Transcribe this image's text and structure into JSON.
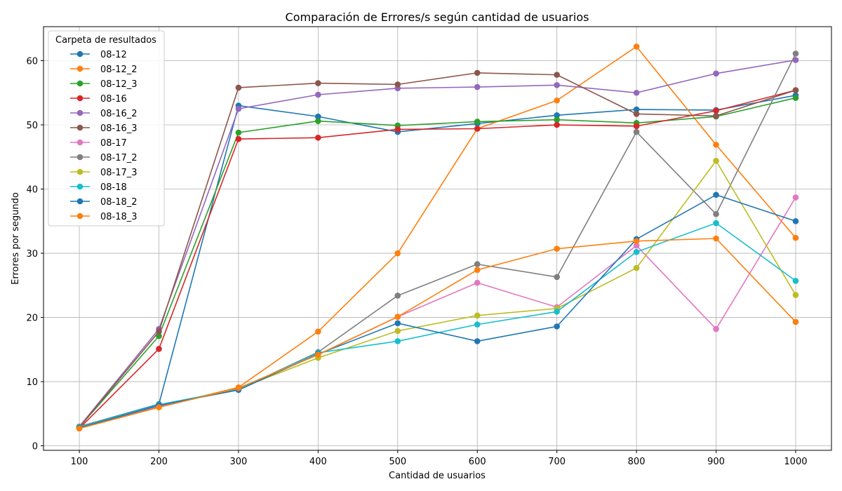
{
  "chart_data": {
    "type": "line",
    "title": "Comparación de Errores/s según cantidad de usuarios",
    "xlabel": "Cantidad de usuarios",
    "ylabel": "Errores por segundo",
    "x": [
      100,
      200,
      300,
      400,
      500,
      600,
      700,
      800,
      900,
      1000
    ],
    "xlim": [
      55,
      1045
    ],
    "ylim": [
      -0.7,
      65.3
    ],
    "xticks": [
      100,
      200,
      300,
      400,
      500,
      600,
      700,
      800,
      900,
      1000
    ],
    "yticks": [
      0,
      10,
      20,
      30,
      40,
      50,
      60
    ],
    "grid": true,
    "legend": {
      "title": "Carpeta de resultados",
      "placement": "upper-left"
    },
    "series": [
      {
        "name": "08-12",
        "color": "#1f77b4",
        "values": [
          3.0,
          6.5,
          53.0,
          51.3,
          48.9,
          50.2,
          51.5,
          52.4,
          52.3,
          54.6
        ]
      },
      {
        "name": "08-12_2",
        "color": "#ff7f0e",
        "values": [
          2.8,
          6.1,
          9.1,
          17.8,
          30.0,
          49.4,
          53.8,
          62.2,
          46.9,
          32.4
        ]
      },
      {
        "name": "08-12_3",
        "color": "#2ca02c",
        "values": [
          2.9,
          17.1,
          48.8,
          50.6,
          49.9,
          50.5,
          50.8,
          50.3,
          51.3,
          54.2
        ]
      },
      {
        "name": "08-16",
        "color": "#d62728",
        "values": [
          2.7,
          15.1,
          47.8,
          48.0,
          49.3,
          49.4,
          50.0,
          49.8,
          52.2,
          55.4
        ]
      },
      {
        "name": "08-16_2",
        "color": "#9467bd",
        "values": [
          3.0,
          18.2,
          52.5,
          54.7,
          55.7,
          55.9,
          56.2,
          55.0,
          58.0,
          60.1
        ]
      },
      {
        "name": "08-16_3",
        "color": "#8c564b",
        "values": [
          2.9,
          17.8,
          55.8,
          56.5,
          56.3,
          58.1,
          57.8,
          51.7,
          51.4,
          55.4
        ]
      },
      {
        "name": "08-17",
        "color": "#e377c2",
        "values": [
          2.8,
          6.2,
          8.9,
          14.2,
          20.1,
          25.4,
          21.6,
          31.2,
          18.2,
          38.7
        ]
      },
      {
        "name": "08-17_2",
        "color": "#7f7f7f",
        "values": [
          3.0,
          6.4,
          8.8,
          14.6,
          23.4,
          28.3,
          26.3,
          48.9,
          36.1,
          61.1
        ]
      },
      {
        "name": "08-17_3",
        "color": "#bcbd22",
        "values": [
          2.9,
          6.3,
          8.9,
          13.7,
          17.9,
          20.3,
          21.4,
          27.7,
          44.4,
          23.5
        ]
      },
      {
        "name": "08-18",
        "color": "#17becf",
        "values": [
          2.9,
          6.4,
          8.8,
          14.5,
          16.3,
          18.9,
          20.9,
          30.2,
          34.7,
          25.7
        ]
      },
      {
        "name": "08-18_2",
        "color": "#1f77b4",
        "values": [
          2.8,
          6.3,
          8.7,
          14.3,
          19.1,
          16.3,
          18.6,
          32.2,
          39.1,
          35.0
        ]
      },
      {
        "name": "08-18_3",
        "color": "#ff7f0e",
        "values": [
          2.7,
          6.0,
          9.0,
          14.2,
          20.1,
          27.4,
          30.7,
          31.9,
          32.3,
          19.3
        ]
      }
    ]
  }
}
